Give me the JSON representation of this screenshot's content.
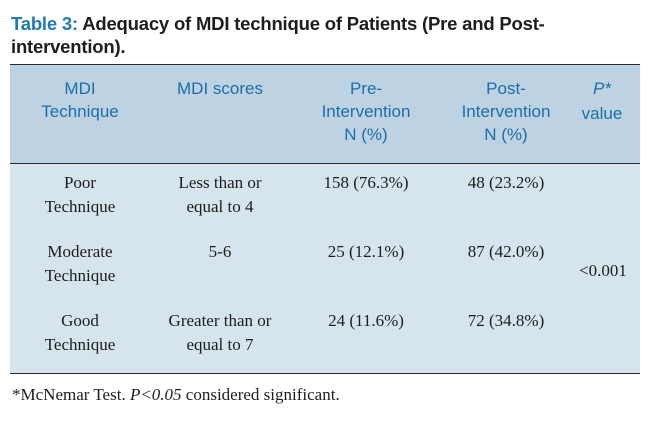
{
  "caption": {
    "label": "Table 3:",
    "title": "Adequacy of MDI technique of Patients (Pre and Post-intervention)."
  },
  "table": {
    "headers": {
      "technique_line1": "MDI",
      "technique_line2": "Technique",
      "scores": "MDI scores",
      "pre_line1": "Pre-",
      "pre_line2": "Intervention",
      "pre_line3": "N (%)",
      "post_line1": "Post-",
      "post_line2": "Intervention",
      "post_line3": "N (%)",
      "p_symbol": "P",
      "p_star": "*",
      "p_word": "value"
    },
    "rows": [
      {
        "technique_line1": "Poor",
        "technique_line2": "Technique",
        "score_line1": "Less than or",
        "score_line2": "equal to 4",
        "pre": "158 (76.3%)",
        "post": "48 (23.2%)"
      },
      {
        "technique_line1": "Moderate",
        "technique_line2": "Technique",
        "score_line1": "5-6",
        "score_line2": "",
        "pre": "25 (12.1%)",
        "post": "87 (42.0%)"
      },
      {
        "technique_line1": "Good",
        "technique_line2": "Technique",
        "score_line1": "Greater than or",
        "score_line2": "equal to 7",
        "pre": "24 (11.6%)",
        "post": "72 (34.8%)"
      }
    ],
    "p_value": "<0.001"
  },
  "footnote": {
    "prefix": "*McNemar Test. ",
    "italic": "P<0.05",
    "suffix": " considered significant."
  }
}
